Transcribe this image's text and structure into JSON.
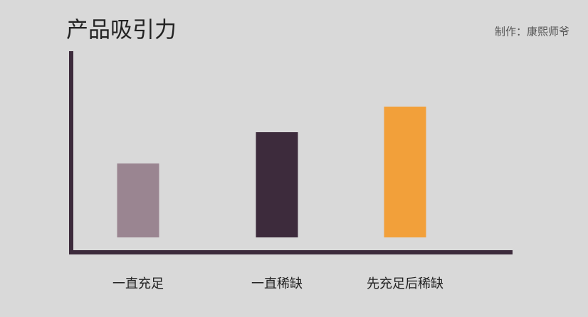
{
  "chart_data": {
    "type": "bar",
    "title": "产品吸引力",
    "subtitle": "制作：康熙师爷",
    "categories": [
      "一直充足",
      "一直稀缺",
      "先充足后稀缺"
    ],
    "values": [
      104,
      148,
      184
    ],
    "colors": [
      "#9a8591",
      "#3d2b3c",
      "#f2a03a"
    ]
  }
}
